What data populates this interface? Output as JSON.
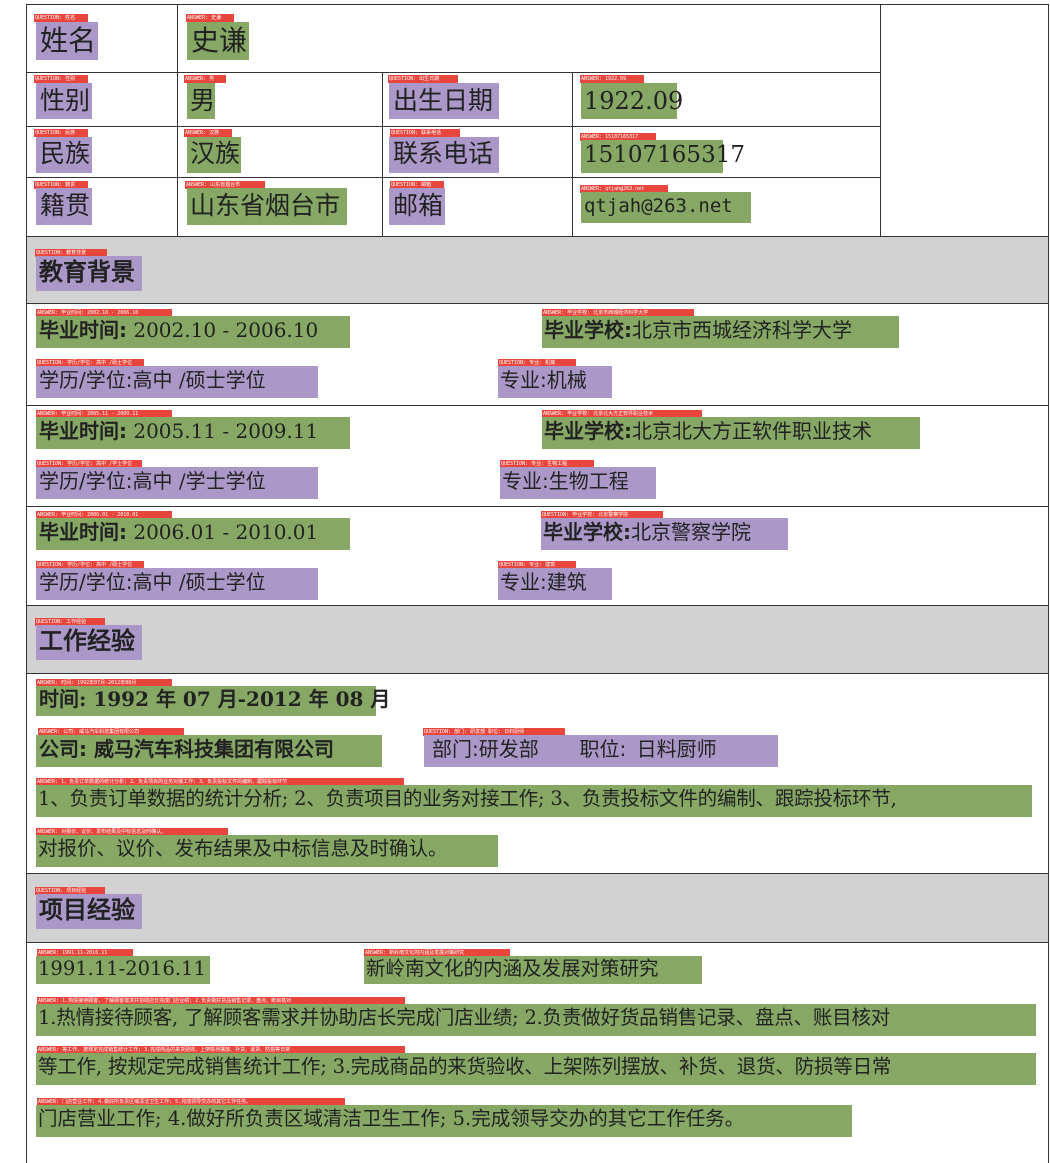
{
  "tags": {
    "name_q": "QUESTION: 姓名",
    "name_a": "ANSWER: 史谦",
    "gender_q": "QUESTION: 性别",
    "gender_a": "ANSWER: 男",
    "birth_q": "QUESTION: 出生日期",
    "birth_a": "ANSWER: 1922.09",
    "ethnic_q": "QUESTION: 民族",
    "ethnic_a": "ANSWER: 汉族",
    "phone_q": "QUESTION: 联系电话",
    "phone_a": "ANSWER: 15107165317",
    "origin_q": "QUESTION: 籍贯",
    "origin_a": "ANSWER: 山东省烟台市",
    "email_q": "QUESTION: 邮箱",
    "email_a": "ANSWER: qtjah@263.net",
    "edu_q": "QUESTION: 教育背景",
    "e1_time": "ANSWER: 毕业时间: 2002.10 - 2006.10",
    "e1_school": "ANSWER: 毕业学校: 北京市西城经济科学大学",
    "e1_degree": "QUESTION: 学历/学位: 高中 /硕士学位",
    "e1_major": "QUESTION: 专业: 机械",
    "e2_time": "ANSWER: 毕业时间: 2005.11 - 2009.11",
    "e2_school": "ANSWER: 毕业学校: 北京北大方正软件职业技术",
    "e2_degree": "QUESTION: 学历/学位: 高中 /学士学位",
    "e2_major": "QUESTION: 专业: 生物工程",
    "e3_time": "ANSWER: 毕业时间: 2006.01 - 2010.01",
    "e3_school": "QUESTION: 毕业学校: 北京警察学院",
    "e3_degree": "QUESTION: 学历/学位: 高中 /硕士学位",
    "e3_major": "QUESTION: 专业: 建筑",
    "work_q": "QUESTION: 工作经验",
    "w_time": "ANSWER: 时间: 1992年07月-2012年08月",
    "w_company": "ANSWER: 公司: 威马汽车科技集团有限公司",
    "w_dept": "QUESTION: 部门: 研发部 职位: 日料厨师",
    "w_d1": "ANSWER: 1、负责订单数据的统计分析; 2、负责项目的业务对接工作; 3、负责投标文件的编制、跟踪投标环节",
    "w_d2": "ANSWER: 对报价、议价、发布结果及中标信息及时确认。",
    "proj_q": "QUESTION: 项目经验",
    "p_time": "ANSWER: 1991.11-2016.11",
    "p_title": "ANSWER: 新岭南文化的内涵及发展对策研究",
    "p_d1": "ANSWER: 1.热情接待顾客, 了解顾客需求并协助店长完成门店业绩; 2.负责做好货品销售记录、盘点、账目核对",
    "p_d2": "ANSWER: 等工作, 按规定完成销售统计工作; 3.完成商品的来货验收、上架陈列摆放、补货、退货、防损等日常",
    "p_d3": "ANSWER: 门店营业工作; 4.做好所负责区域清洁卫生工作; 5.完成领导交办的其它工作任务。"
  },
  "basic": {
    "name_label": "姓名",
    "name_value": "史谦",
    "gender_label": "性别",
    "gender_value": "男",
    "birth_label": "出生日期",
    "birth_value": "1922.09",
    "ethnic_label": "民族",
    "ethnic_value": "汉族",
    "phone_label": "联系电话",
    "phone_value": "15107165317",
    "origin_label": "籍贯",
    "origin_value": "山东省烟台市",
    "email_label": "邮箱",
    "email_value": "qtjah@263.net"
  },
  "education": {
    "heading": "教育背景",
    "time_label": "毕业时间:",
    "school_label": "毕业学校:",
    "degree_label": "学历/学位:",
    "major_label": "专业:",
    "entries": [
      {
        "time": "2002.10 - 2006.10",
        "school": "北京市西城经济科学大学",
        "degree": "高中 /硕士学位",
        "major": "机械"
      },
      {
        "time": "2005.11 - 2009.11",
        "school": "北京北大方正软件职业技术",
        "degree": "高中 /学士学位",
        "major": "生物工程"
      },
      {
        "time": "2006.01 - 2010.01",
        "school": "北京警察学院",
        "degree": "高中 /硕士学位",
        "major": "建筑"
      }
    ]
  },
  "work": {
    "heading": "工作经验",
    "time": "时间: 1992 年 07 月-2012 年 08 月",
    "company": "公司: 威马汽车科技集团有限公司",
    "dept_label": "部门:",
    "dept": "研发部",
    "position_label": "职位:",
    "position": "日料厨师",
    "desc_line1": "1、负责订单数据的统计分析; 2、负责项目的业务对接工作; 3、负责投标文件的编制、跟踪投标环节,",
    "desc_line2": "对报价、议价、发布结果及中标信息及时确认。"
  },
  "project": {
    "heading": "项目经验",
    "time": "1991.11-2016.11",
    "title": "新岭南文化的内涵及发展对策研究",
    "desc_line1": "1.热情接待顾客, 了解顾客需求并协助店长完成门店业绩; 2.负责做好货品销售记录、盘点、账目核对",
    "desc_line2": "等工作, 按规定完成销售统计工作; 3.完成商品的来货验收、上架陈列摆放、补货、退货、防损等日常",
    "desc_line3": "门店营业工作; 4.做好所负责区域清洁卫生工作; 5.完成领导交办的其它工作任务。"
  },
  "colors": {
    "question": "#ab98c9",
    "answer": "#86a864",
    "tag": "#e8453c",
    "band": "#d2d2d2"
  }
}
